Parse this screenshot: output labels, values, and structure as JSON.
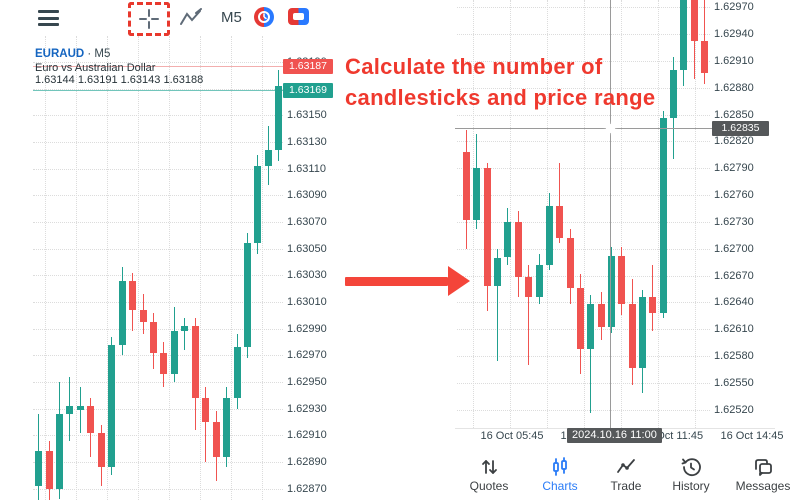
{
  "toolbar": {
    "timeframe": "M5"
  },
  "left_chart": {
    "symbol": "EURAUD",
    "symbol_suffix": " · M5",
    "description": "Euro vs Australian Dollar",
    "ohlc": "1.63144 1.63191 1.63143 1.63188",
    "ask_label": "1.63187",
    "bid_label": "1.63169"
  },
  "right_chart": {
    "crosshair_price_label": "1.62835",
    "crosshair_time_label": "2024.10.16 11:00"
  },
  "annotation": {
    "line1": "Calculate the number of",
    "line2": "candlesticks and price range"
  },
  "bottom_nav": [
    {
      "label": "Quotes",
      "icon": "quotes-arrows-icon",
      "active": false
    },
    {
      "label": "Charts",
      "icon": "charts-candles-icon",
      "active": true
    },
    {
      "label": "Trade",
      "icon": "trade-line-icon",
      "active": false
    },
    {
      "label": "History",
      "icon": "history-clock-icon",
      "active": false
    },
    {
      "label": "Messages",
      "icon": "messages-icon",
      "active": false
    }
  ],
  "colors": {
    "bull": "#21a08f",
    "bear": "#f05350",
    "ask_line": "#f2aeae",
    "bid_line": "#72c5bb",
    "grid": "#dcdcdc",
    "crosshair": "#9a9a9a",
    "badge_dark": "#55585a",
    "accent_blue": "#2a7cf7",
    "symbol_blue": "#1565c0",
    "annotation_red": "#ef392e"
  },
  "chart_data": [
    {
      "type": "candlestick",
      "name": "left-euraud-m5",
      "title": "EURAUD M5",
      "ask": 1.63187,
      "bid": 1.63169,
      "price_ticks": [
        "1.63190",
        "1.63170",
        "1.63150",
        "1.63130",
        "1.63110",
        "1.63090",
        "1.63070",
        "1.63050",
        "1.63030",
        "1.63010",
        "1.62990",
        "1.62970",
        "1.62950",
        "1.62930",
        "1.62910",
        "1.62890",
        "1.62870"
      ],
      "candles": [
        [
          1.62872,
          1.62926,
          1.62856,
          1.62898
        ],
        [
          1.62898,
          1.62906,
          1.62848,
          1.6287
        ],
        [
          1.6287,
          1.6295,
          1.62862,
          1.62926
        ],
        [
          1.62926,
          1.62954,
          1.62906,
          1.62932
        ],
        [
          1.62929,
          1.62946,
          1.62912,
          1.62932
        ],
        [
          1.62932,
          1.62938,
          1.62894,
          1.62912
        ],
        [
          1.62912,
          1.62918,
          1.62872,
          1.62886
        ],
        [
          1.62886,
          1.62984,
          1.6288,
          1.62978
        ],
        [
          1.62978,
          1.63036,
          1.6297,
          1.63026
        ],
        [
          1.63026,
          1.63032,
          1.62988,
          1.63004
        ],
        [
          1.63004,
          1.63016,
          1.62986,
          1.62995
        ],
        [
          1.62995,
          1.63002,
          1.6296,
          1.62972
        ],
        [
          1.62972,
          1.6298,
          1.62946,
          1.62956
        ],
        [
          1.62956,
          1.63006,
          1.6295,
          1.62988
        ],
        [
          1.62988,
          1.62998,
          1.62974,
          1.62992
        ],
        [
          1.62992,
          1.62998,
          1.62914,
          1.62938
        ],
        [
          1.62938,
          1.62946,
          1.6289,
          1.6292
        ],
        [
          1.6292,
          1.62928,
          1.62876,
          1.62894
        ],
        [
          1.62894,
          1.62946,
          1.62886,
          1.62938
        ],
        [
          1.62938,
          1.62986,
          1.6293,
          1.62976
        ],
        [
          1.62976,
          1.63062,
          1.62968,
          1.63054
        ],
        [
          1.63054,
          1.6312,
          1.63046,
          1.63112
        ],
        [
          1.63112,
          1.63142,
          1.63098,
          1.63124
        ],
        [
          1.63124,
          1.63184,
          1.63116,
          1.63172
        ]
      ]
    },
    {
      "type": "candlestick",
      "name": "right-euraud-m5-zoomed",
      "crosshair": {
        "price": 1.62835,
        "time": "2024.10.16 11:00"
      },
      "price_ticks": [
        "1.62970",
        "1.62940",
        "1.62910",
        "1.62880",
        "1.62850",
        "1.62820",
        "1.62790",
        "1.62760",
        "1.62730",
        "1.62700",
        "1.62670",
        "1.62640",
        "1.62610",
        "1.62580",
        "1.62550",
        "1.62520"
      ],
      "time_ticks": [
        "16 Oct 05:45",
        "16 Oct 08:45",
        "16 Oct 11:45",
        "16 Oct 14:45"
      ],
      "candles": [
        [
          1.62808,
          1.62833,
          1.627,
          1.62732
        ],
        [
          1.62732,
          1.62828,
          1.62722,
          1.6279
        ],
        [
          1.6279,
          1.62796,
          1.6263,
          1.62658
        ],
        [
          1.62658,
          1.627,
          1.62574,
          1.6269
        ],
        [
          1.6269,
          1.62746,
          1.62682,
          1.6273
        ],
        [
          1.6273,
          1.62742,
          1.62646,
          1.62668
        ],
        [
          1.62668,
          1.62682,
          1.6257,
          1.62646
        ],
        [
          1.62646,
          1.62694,
          1.62638,
          1.62682
        ],
        [
          1.62682,
          1.62762,
          1.62676,
          1.62748
        ],
        [
          1.62748,
          1.62796,
          1.62706,
          1.62712
        ],
        [
          1.62712,
          1.62722,
          1.62638,
          1.62656
        ],
        [
          1.62656,
          1.62672,
          1.6256,
          1.62588
        ],
        [
          1.62588,
          1.62648,
          1.62516,
          1.62638
        ],
        [
          1.62638,
          1.62652,
          1.62598,
          1.62612
        ],
        [
          1.62612,
          1.62702,
          1.62606,
          1.62692
        ],
        [
          1.62692,
          1.62702,
          1.62626,
          1.62638
        ],
        [
          1.62638,
          1.62666,
          1.62548,
          1.62566
        ],
        [
          1.62566,
          1.62654,
          1.62538,
          1.62646
        ],
        [
          1.62646,
          1.62682,
          1.62608,
          1.62628
        ],
        [
          1.62628,
          1.62854,
          1.62622,
          1.62846
        ],
        [
          1.62846,
          1.62914,
          1.628,
          1.629
        ],
        [
          1.629,
          1.62996,
          1.62882,
          1.62986
        ],
        [
          1.62986,
          1.63002,
          1.6289,
          1.62932
        ],
        [
          1.62932,
          1.62978,
          1.62884,
          1.62896
        ]
      ]
    }
  ]
}
